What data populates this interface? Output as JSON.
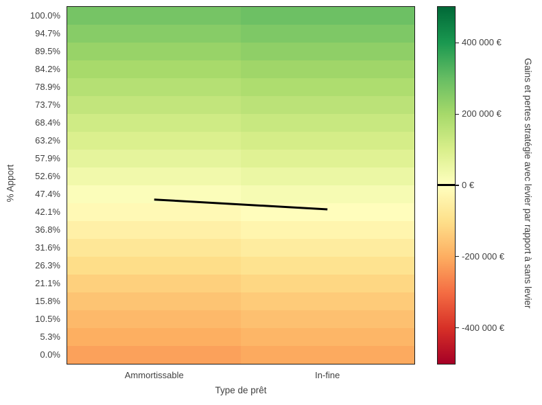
{
  "chart_data": {
    "type": "heatmap",
    "xlabel": "Type de prêt",
    "ylabel": "% Apport",
    "categories_x": [
      "Ammortissable",
      "In-fine"
    ],
    "categories_y": [
      "100.0%",
      "94.7%",
      "89.5%",
      "84.2%",
      "78.9%",
      "73.7%",
      "68.4%",
      "63.2%",
      "57.9%",
      "52.6%",
      "47.4%",
      "42.1%",
      "36.8%",
      "31.6%",
      "26.3%",
      "21.1%",
      "15.8%",
      "10.5%",
      "5.3%",
      "0.0%"
    ],
    "series": [
      {
        "name": "Ammortissable",
        "values": [
          275000,
          248000,
          222000,
          196000,
          170000,
          145000,
          119000,
          94000,
          68000,
          38000,
          10000,
          -19000,
          -47000,
          -76000,
          -104000,
          -133000,
          -156000,
          -178000,
          -199000,
          -220000
        ]
      },
      {
        "name": "In-fine",
        "values": [
          289000,
          262000,
          236000,
          210000,
          184000,
          159000,
          133000,
          108000,
          82000,
          52000,
          24000,
          -5000,
          -33000,
          -62000,
          -90000,
          -119000,
          -142000,
          -164000,
          -185000,
          -206000
        ]
      }
    ],
    "vmin": -500000,
    "vmax": 500000,
    "colormap": {
      "name": "RdYlGn",
      "positions": [
        0,
        0.1,
        0.2,
        0.3,
        0.4,
        0.5,
        0.6,
        0.7,
        0.8,
        0.9,
        1.0
      ],
      "colors": [
        "#a50026",
        "#d73027",
        "#f46d43",
        "#fdae61",
        "#fee08b",
        "#ffffbf",
        "#d9ef8b",
        "#a6d96a",
        "#66bd63",
        "#1a9850",
        "#006837"
      ]
    },
    "zero_contour": {
      "color": "#000000",
      "apport_pct_by_column": [
        45.8,
        42.9
      ]
    },
    "colorbar": {
      "label": "Gains et pertes stratégie avec levier par rapport à sans levier",
      "zero_line_value": 0,
      "ticks": [
        {
          "value": 400000,
          "label": "400 000 €"
        },
        {
          "value": 200000,
          "label": "200 000 €"
        },
        {
          "value": 0,
          "label": "0 €"
        },
        {
          "value": -200000,
          "label": "-200 000 €"
        },
        {
          "value": -400000,
          "label": "-400 000 €"
        }
      ]
    },
    "grid": false,
    "legend": "colorbar-right"
  }
}
